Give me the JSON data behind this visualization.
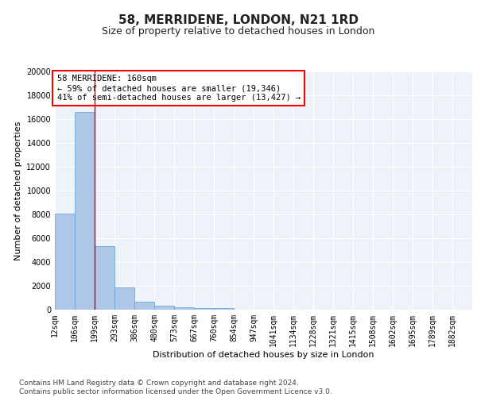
{
  "title": "58, MERRIDENE, LONDON, N21 1RD",
  "subtitle": "Size of property relative to detached houses in London",
  "xlabel": "Distribution of detached houses by size in London",
  "ylabel": "Number of detached properties",
  "bar_color": "#aec6e8",
  "bar_edge_color": "#5a9fd4",
  "background_color": "#eef2f9",
  "grid_color": "#ffffff",
  "annotation_text": "58 MERRIDENE: 160sqm\n← 59% of detached houses are smaller (19,346)\n41% of semi-detached houses are larger (13,427) →",
  "marker_line_color": "#cc0000",
  "categories": [
    "12sqm",
    "106sqm",
    "199sqm",
    "293sqm",
    "386sqm",
    "480sqm",
    "573sqm",
    "667sqm",
    "760sqm",
    "854sqm",
    "947sqm",
    "1041sqm",
    "1134sqm",
    "1228sqm",
    "1321sqm",
    "1415sqm",
    "1508sqm",
    "1602sqm",
    "1695sqm",
    "1789sqm",
    "1882sqm"
  ],
  "values": [
    8050,
    16600,
    5350,
    1870,
    680,
    310,
    180,
    155,
    130,
    0,
    0,
    0,
    0,
    0,
    0,
    0,
    0,
    0,
    0,
    0,
    0
  ],
  "bin_edges": [
    12,
    106,
    199,
    293,
    386,
    480,
    573,
    667,
    760,
    854,
    947,
    1041,
    1134,
    1228,
    1321,
    1415,
    1508,
    1602,
    1695,
    1789,
    1882
  ],
  "ylim": [
    0,
    20000
  ],
  "yticks": [
    0,
    2000,
    4000,
    6000,
    8000,
    10000,
    12000,
    14000,
    16000,
    18000,
    20000
  ],
  "footer": "Contains HM Land Registry data © Crown copyright and database right 2024.\nContains public sector information licensed under the Open Government Licence v3.0.",
  "title_fontsize": 11,
  "subtitle_fontsize": 9,
  "axis_label_fontsize": 8,
  "tick_fontsize": 7,
  "footer_fontsize": 6.5
}
